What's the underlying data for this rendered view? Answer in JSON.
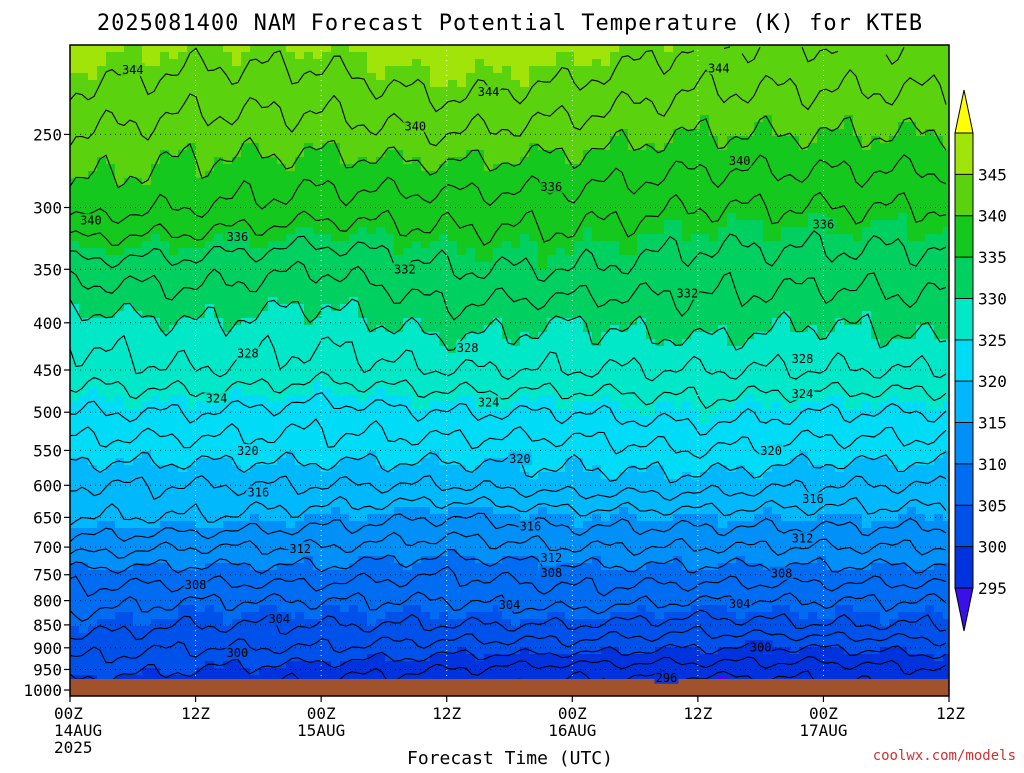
{
  "title": "2025081400 NAM Forecast Potential Temperature (K) for KTEB",
  "xlabel": "Forecast Time (UTC)",
  "credit": "coolwx.com/models",
  "chart_data": {
    "type": "heatmap",
    "title": "2025081400 NAM Forecast Potential Temperature (K) for KTEB",
    "xlabel": "Forecast Time (UTC)",
    "ylabel": "",
    "x_range_hours": [
      0,
      84
    ],
    "y_axis": {
      "scale": "log",
      "direction": "reversed",
      "range": [
        1015,
        200
      ]
    },
    "x_ticks": [
      {
        "hour": 0,
        "label": "00Z",
        "sub1": "14AUG",
        "sub2": "2025"
      },
      {
        "hour": 12,
        "label": "12Z",
        "sub1": "",
        "sub2": ""
      },
      {
        "hour": 24,
        "label": "00Z",
        "sub1": "15AUG",
        "sub2": ""
      },
      {
        "hour": 36,
        "label": "12Z",
        "sub1": "",
        "sub2": ""
      },
      {
        "hour": 48,
        "label": "00Z",
        "sub1": "16AUG",
        "sub2": ""
      },
      {
        "hour": 60,
        "label": "12Z",
        "sub1": "",
        "sub2": ""
      },
      {
        "hour": 72,
        "label": "00Z",
        "sub1": "17AUG",
        "sub2": ""
      },
      {
        "hour": 84,
        "label": "12Z",
        "sub1": "",
        "sub2": ""
      }
    ],
    "y_ticks": [
      250,
      300,
      350,
      400,
      450,
      500,
      550,
      600,
      650,
      700,
      750,
      800,
      850,
      900,
      950,
      1000
    ],
    "gridlines": true,
    "colorbar": {
      "boundaries": [
        290,
        295,
        300,
        305,
        310,
        315,
        320,
        325,
        330,
        335,
        340,
        345,
        350
      ],
      "labels": [
        295,
        300,
        305,
        310,
        315,
        320,
        325,
        330,
        335,
        340,
        345
      ],
      "colors": [
        "#3a10e8",
        "#0033dd",
        "#0050ea",
        "#006cf2",
        "#0090f8",
        "#00b8fb",
        "#00dcf7",
        "#00e8c8",
        "#00d060",
        "#14c81e",
        "#5ad20e",
        "#a0e40a",
        "#ffff00"
      ]
    },
    "profile_hours": [
      0,
      12,
      24,
      36,
      48,
      60,
      72,
      84
    ],
    "profile_levels": [
      1000,
      950,
      900,
      850,
      800,
      750,
      700,
      650,
      600,
      550,
      500,
      450,
      400,
      350,
      300,
      250,
      200
    ],
    "theta_profiles": [
      [
        299,
        301,
        303,
        305,
        307,
        309,
        313,
        316,
        318,
        321,
        324,
        327,
        329,
        333,
        339,
        342,
        346
      ],
      [
        298,
        300,
        302,
        304,
        306,
        309,
        312,
        316,
        318,
        321,
        324,
        328,
        330,
        333,
        338,
        341,
        345
      ],
      [
        297,
        299,
        302,
        304,
        306,
        309,
        312,
        315,
        318,
        321,
        323,
        327,
        329,
        332,
        337,
        341,
        345
      ],
      [
        296,
        298,
        301,
        304,
        306,
        308,
        311,
        314,
        318,
        321,
        324,
        328,
        331,
        334,
        337,
        342,
        347
      ],
      [
        295,
        297,
        301,
        304,
        307,
        309,
        312,
        315,
        319,
        321,
        324,
        328,
        330,
        334,
        337,
        341,
        346
      ],
      [
        294,
        297,
        300,
        303,
        306,
        309,
        312,
        315,
        319,
        322,
        325,
        328,
        331,
        333,
        336,
        340,
        344
      ],
      [
        295,
        297,
        300,
        304,
        306,
        309,
        312,
        315,
        318,
        321,
        324,
        328,
        330,
        333,
        336,
        340,
        344
      ],
      [
        296,
        298,
        301,
        304,
        306,
        309,
        312,
        315,
        318,
        321,
        324,
        328,
        331,
        333,
        336,
        340,
        344
      ]
    ],
    "contour_levels": [
      296,
      298,
      300,
      302,
      304,
      306,
      308,
      310,
      312,
      314,
      316,
      318,
      320,
      322,
      324,
      326,
      328,
      330,
      332,
      334,
      336,
      338,
      340,
      342,
      344
    ],
    "contour_labels": [
      {
        "text": "344",
        "hour": 6,
        "level": 213
      },
      {
        "text": "344",
        "hour": 40,
        "level": 225
      },
      {
        "text": "344",
        "hour": 62,
        "level": 212
      },
      {
        "text": "340",
        "hour": 2,
        "level": 310
      },
      {
        "text": "340",
        "hour": 33,
        "level": 245
      },
      {
        "text": "340",
        "hour": 64,
        "level": 267
      },
      {
        "text": "336",
        "hour": 16,
        "level": 323
      },
      {
        "text": "336",
        "hour": 46,
        "level": 285
      },
      {
        "text": "336",
        "hour": 72,
        "level": 313
      },
      {
        "text": "332",
        "hour": 32,
        "level": 350
      },
      {
        "text": "332",
        "hour": 59,
        "level": 372
      },
      {
        "text": "328",
        "hour": 17,
        "level": 432
      },
      {
        "text": "328",
        "hour": 38,
        "level": 426
      },
      {
        "text": "328",
        "hour": 70,
        "level": 438
      },
      {
        "text": "324",
        "hour": 14,
        "level": 483
      },
      {
        "text": "324",
        "hour": 40,
        "level": 488
      },
      {
        "text": "324",
        "hour": 70,
        "level": 478
      },
      {
        "text": "320",
        "hour": 17,
        "level": 551
      },
      {
        "text": "320",
        "hour": 43,
        "level": 562
      },
      {
        "text": "320",
        "hour": 67,
        "level": 551
      },
      {
        "text": "316",
        "hour": 18,
        "level": 611
      },
      {
        "text": "316",
        "hour": 44,
        "level": 665
      },
      {
        "text": "316",
        "hour": 71,
        "level": 621
      },
      {
        "text": "312",
        "hour": 22,
        "level": 703
      },
      {
        "text": "312",
        "hour": 46,
        "level": 719
      },
      {
        "text": "312",
        "hour": 70,
        "level": 685
      },
      {
        "text": "308",
        "hour": 12,
        "level": 769
      },
      {
        "text": "308",
        "hour": 46,
        "level": 747
      },
      {
        "text": "308",
        "hour": 68,
        "level": 748
      },
      {
        "text": "304",
        "hour": 20,
        "level": 838
      },
      {
        "text": "304",
        "hour": 42,
        "level": 809
      },
      {
        "text": "304",
        "hour": 64,
        "level": 807
      },
      {
        "text": "300",
        "hour": 16,
        "level": 912
      },
      {
        "text": "300",
        "hour": 66,
        "level": 899
      },
      {
        "text": "296",
        "hour": 57,
        "level": 970
      }
    ],
    "ground_color": "#a0522d"
  }
}
